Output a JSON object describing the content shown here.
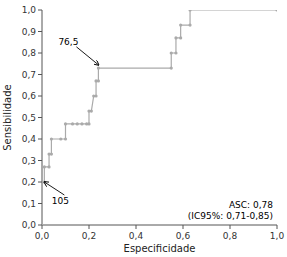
{
  "chart_data": {
    "type": "line",
    "x": [
      0.0,
      0.0,
      0.01,
      0.01,
      0.03,
      0.03,
      0.04,
      0.04,
      0.08,
      0.1,
      0.1,
      0.13,
      0.15,
      0.17,
      0.19,
      0.2,
      0.2,
      0.21,
      0.22,
      0.23,
      0.23,
      0.24,
      0.24,
      0.55,
      0.55,
      0.57,
      0.57,
      0.59,
      0.59,
      0.63,
      0.63,
      1.0
    ],
    "values": [
      0.0,
      0.2,
      0.2,
      0.27,
      0.27,
      0.33,
      0.33,
      0.4,
      0.4,
      0.4,
      0.47,
      0.47,
      0.47,
      0.47,
      0.47,
      0.47,
      0.53,
      0.53,
      0.6,
      0.6,
      0.67,
      0.67,
      0.73,
      0.73,
      0.8,
      0.8,
      0.87,
      0.87,
      0.93,
      0.93,
      1.0,
      1.0
    ],
    "color": "#aaaaaa",
    "marker": "point",
    "xlabel": "Especificidade",
    "ylabel": "Sensibilidade",
    "xlim": [
      0.0,
      1.0
    ],
    "ylim": [
      0.0,
      1.0
    ],
    "xticks": [
      {
        "value": 0.0,
        "label": "0,0"
      },
      {
        "value": 0.2,
        "label": "0,2"
      },
      {
        "value": 0.4,
        "label": "0,4"
      },
      {
        "value": 0.6,
        "label": "0,6"
      },
      {
        "value": 0.8,
        "label": "0,8"
      },
      {
        "value": 1.0,
        "label": "1,0"
      }
    ],
    "yticks": [
      {
        "value": 0.0,
        "label": "0,0"
      },
      {
        "value": 0.1,
        "label": "0,1"
      },
      {
        "value": 0.2,
        "label": "0,2"
      },
      {
        "value": 0.3,
        "label": "0,3"
      },
      {
        "value": 0.4,
        "label": "0,4"
      },
      {
        "value": 0.5,
        "label": "0,5"
      },
      {
        "value": 0.6,
        "label": "0,6"
      },
      {
        "value": 0.7,
        "label": "0,7"
      },
      {
        "value": 0.8,
        "label": "0,8"
      },
      {
        "value": 0.9,
        "label": "0,9"
      },
      {
        "value": 1.0,
        "label": "1,0"
      }
    ],
    "annotations": [
      {
        "text": "76,5",
        "x": 0.24,
        "y": 0.745
      },
      {
        "text": "105",
        "x": 0.01,
        "y": 0.2
      },
      {
        "text": "ASC: 0,78\n(IC95%: 0,71-0,85)"
      }
    ]
  }
}
